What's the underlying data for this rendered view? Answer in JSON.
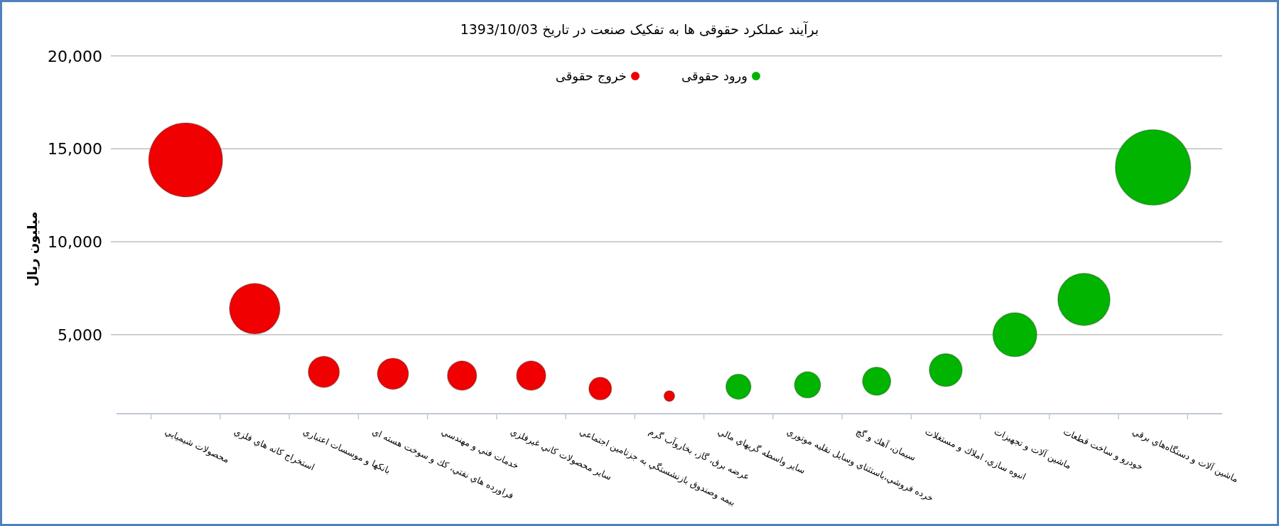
{
  "chart_data": {
    "type": "bubble",
    "title": "برآیند عملکرد حقوقی ها به تفکیک صنعت در تاریخ 1393/10/03",
    "ylabel": "میلیون ریال",
    "categories": [
      "محصولات شيميايي",
      "استخراج كانه هاي فلزي",
      "بانكها و موسسات اعتباري",
      "فراورده هاي نفتي، كك و سوخت هسته اي",
      "خدمات فني و مهندسي",
      "ساير محصولات كاني غيرفلزي",
      "بيمه وصندوق بازنشستگي به جزتامين اجتماعي",
      "عرضه برق، گاز، بخاروآب گرم",
      "ساير واسطه گريهاي مالي",
      "خرده فروشي،باستثناي وسايل نقليه موتوري",
      "سيمان، آهك و گچ",
      "انبوه سازي، املاك و مستغلات",
      "ماشين آلات و تجهيزات",
      "خودرو و ساخت قطعات",
      "ماشين آلات و دستگاه‌هاي برقي"
    ],
    "series": [
      {
        "name": "ورود حقوقی",
        "color": "#00b400",
        "values": [
          null,
          null,
          null,
          null,
          null,
          null,
          null,
          null,
          2200,
          2300,
          2500,
          3100,
          5000,
          6900,
          14000
        ],
        "sizes": [
          null,
          null,
          null,
          null,
          null,
          null,
          null,
          null,
          0.11,
          0.12,
          0.14,
          0.19,
          0.34,
          0.48,
          1
        ]
      },
      {
        "name": "خروج حقوقی",
        "color": "#f00000",
        "values": [
          14400,
          6400,
          3000,
          2900,
          2800,
          2800,
          2100,
          1700,
          null,
          null,
          null,
          null,
          null,
          null,
          null
        ],
        "sizes": [
          0.96,
          0.45,
          0.17,
          0.17,
          0.15,
          0.15,
          0.09,
          0.02,
          null,
          null,
          null,
          null,
          null,
          null,
          null
        ]
      }
    ],
    "ylim": [
      750,
      20000
    ],
    "yticks": [
      {
        "value": 5000,
        "label": "5,000"
      },
      {
        "value": 10000,
        "label": "10,000"
      },
      {
        "value": 15000,
        "label": "15,000"
      },
      {
        "value": 20000,
        "label": "20,000"
      }
    ],
    "grid": "y",
    "legend": "top"
  }
}
